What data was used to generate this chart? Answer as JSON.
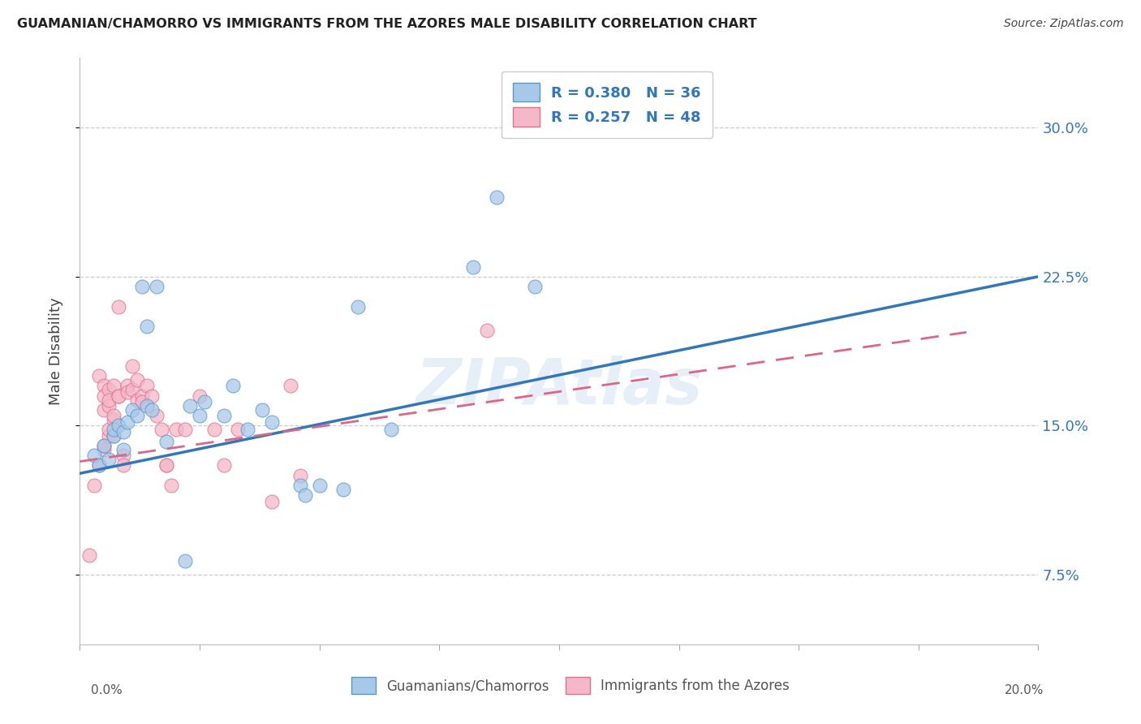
{
  "title": "GUAMANIAN/CHAMORRO VS IMMIGRANTS FROM THE AZORES MALE DISABILITY CORRELATION CHART",
  "source": "Source: ZipAtlas.com",
  "ylabel": "Male Disability",
  "y_ticks": [
    0.075,
    0.15,
    0.225,
    0.3
  ],
  "y_tick_labels": [
    "7.5%",
    "15.0%",
    "22.5%",
    "30.0%"
  ],
  "xlim": [
    0.0,
    0.2
  ],
  "ylim": [
    0.04,
    0.335
  ],
  "watermark": "ZIPAtlas",
  "legend_r1": "R = 0.380",
  "legend_n1": "N = 36",
  "legend_r2": "R = 0.257",
  "legend_n2": "N = 48",
  "blue_fill": "#a8c8e8",
  "pink_fill": "#f4b8c8",
  "blue_edge": "#5599cc",
  "pink_edge": "#e07090",
  "blue_line_color": "#3377bb",
  "pink_line_color": "#dd6688",
  "blue_scatter": [
    [
      0.003,
      0.135
    ],
    [
      0.004,
      0.13
    ],
    [
      0.005,
      0.14
    ],
    [
      0.006,
      0.133
    ],
    [
      0.007,
      0.145
    ],
    [
      0.007,
      0.148
    ],
    [
      0.008,
      0.15
    ],
    [
      0.009,
      0.147
    ],
    [
      0.009,
      0.138
    ],
    [
      0.01,
      0.152
    ],
    [
      0.011,
      0.158
    ],
    [
      0.012,
      0.155
    ],
    [
      0.013,
      0.22
    ],
    [
      0.014,
      0.2
    ],
    [
      0.014,
      0.16
    ],
    [
      0.015,
      0.158
    ],
    [
      0.016,
      0.22
    ],
    [
      0.018,
      0.142
    ],
    [
      0.022,
      0.082
    ],
    [
      0.023,
      0.16
    ],
    [
      0.025,
      0.155
    ],
    [
      0.026,
      0.162
    ],
    [
      0.03,
      0.155
    ],
    [
      0.032,
      0.17
    ],
    [
      0.035,
      0.148
    ],
    [
      0.038,
      0.158
    ],
    [
      0.04,
      0.152
    ],
    [
      0.046,
      0.12
    ],
    [
      0.047,
      0.115
    ],
    [
      0.05,
      0.12
    ],
    [
      0.055,
      0.118
    ],
    [
      0.058,
      0.21
    ],
    [
      0.065,
      0.148
    ],
    [
      0.082,
      0.23
    ],
    [
      0.087,
      0.265
    ],
    [
      0.095,
      0.22
    ]
  ],
  "pink_scatter": [
    [
      0.002,
      0.085
    ],
    [
      0.003,
      0.12
    ],
    [
      0.004,
      0.175
    ],
    [
      0.004,
      0.13
    ],
    [
      0.005,
      0.138
    ],
    [
      0.005,
      0.14
    ],
    [
      0.005,
      0.17
    ],
    [
      0.005,
      0.165
    ],
    [
      0.005,
      0.158
    ],
    [
      0.006,
      0.145
    ],
    [
      0.006,
      0.16
    ],
    [
      0.006,
      0.148
    ],
    [
      0.006,
      0.168
    ],
    [
      0.006,
      0.163
    ],
    [
      0.007,
      0.153
    ],
    [
      0.007,
      0.155
    ],
    [
      0.007,
      0.145
    ],
    [
      0.007,
      0.17
    ],
    [
      0.008,
      0.165
    ],
    [
      0.008,
      0.21
    ],
    [
      0.008,
      0.165
    ],
    [
      0.009,
      0.135
    ],
    [
      0.009,
      0.13
    ],
    [
      0.01,
      0.17
    ],
    [
      0.01,
      0.167
    ],
    [
      0.011,
      0.18
    ],
    [
      0.011,
      0.168
    ],
    [
      0.012,
      0.173
    ],
    [
      0.012,
      0.163
    ],
    [
      0.013,
      0.165
    ],
    [
      0.013,
      0.162
    ],
    [
      0.014,
      0.17
    ],
    [
      0.015,
      0.165
    ],
    [
      0.016,
      0.155
    ],
    [
      0.017,
      0.148
    ],
    [
      0.018,
      0.13
    ],
    [
      0.018,
      0.13
    ],
    [
      0.019,
      0.12
    ],
    [
      0.02,
      0.148
    ],
    [
      0.022,
      0.148
    ],
    [
      0.025,
      0.165
    ],
    [
      0.028,
      0.148
    ],
    [
      0.03,
      0.13
    ],
    [
      0.033,
      0.148
    ],
    [
      0.04,
      0.112
    ],
    [
      0.044,
      0.17
    ],
    [
      0.046,
      0.125
    ],
    [
      0.085,
      0.198
    ]
  ],
  "blue_line_x": [
    0.0,
    0.2
  ],
  "blue_line_y": [
    0.126,
    0.225
  ],
  "pink_line_x": [
    0.0,
    0.185
  ],
  "pink_line_y": [
    0.132,
    0.197
  ],
  "x_tick_positions": [
    0.0,
    0.025,
    0.05,
    0.075,
    0.1,
    0.125,
    0.15,
    0.175,
    0.2
  ]
}
